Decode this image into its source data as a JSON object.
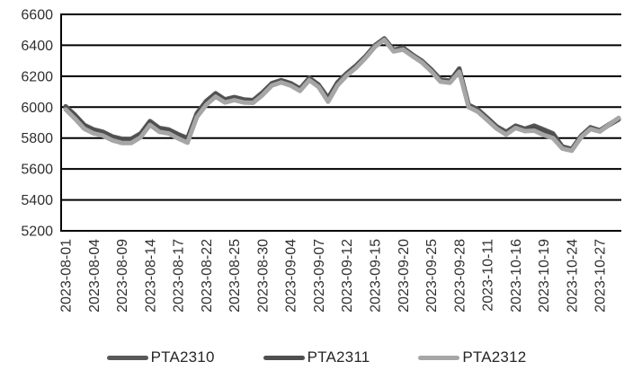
{
  "chart_data": {
    "type": "line",
    "title": "",
    "xlabel": "",
    "ylabel": "",
    "ylim": [
      5200,
      6600
    ],
    "y_ticks": [
      5200,
      5400,
      5600,
      5800,
      6000,
      6200,
      6400,
      6600
    ],
    "grid": "horizontal",
    "legend_position": "bottom",
    "gridline_color": "#000000",
    "axis_color": "#000000",
    "tick_text_color": "#303030",
    "x_dates": [
      "2023-08-01",
      "2023-08-02",
      "2023-08-03",
      "2023-08-04",
      "2023-08-07",
      "2023-08-08",
      "2023-08-09",
      "2023-08-10",
      "2023-08-11",
      "2023-08-14",
      "2023-08-15",
      "2023-08-16",
      "2023-08-17",
      "2023-08-18",
      "2023-08-21",
      "2023-08-22",
      "2023-08-23",
      "2023-08-24",
      "2023-08-25",
      "2023-08-28",
      "2023-08-29",
      "2023-08-30",
      "2023-08-31",
      "2023-09-01",
      "2023-09-04",
      "2023-09-05",
      "2023-09-06",
      "2023-09-07",
      "2023-09-08",
      "2023-09-11",
      "2023-09-12",
      "2023-09-13",
      "2023-09-14",
      "2023-09-15",
      "2023-09-18",
      "2023-09-19",
      "2023-09-20",
      "2023-09-21",
      "2023-09-22",
      "2023-09-25",
      "2023-09-26",
      "2023-09-27",
      "2023-09-28",
      "2023-10-09",
      "2023-10-10",
      "2023-10-11",
      "2023-10-12",
      "2023-10-13",
      "2023-10-16",
      "2023-10-17",
      "2023-10-18",
      "2023-10-19",
      "2023-10-20",
      "2023-10-23",
      "2023-10-24",
      "2023-10-25",
      "2023-10-26",
      "2023-10-27",
      "2023-10-30",
      "2023-10-31"
    ],
    "x_tick_labels": [
      "2023-08-01",
      "2023-08-04",
      "2023-08-09",
      "2023-08-14",
      "2023-08-17",
      "2023-08-22",
      "2023-08-25",
      "2023-08-30",
      "2023-09-04",
      "2023-09-07",
      "2023-09-12",
      "2023-09-15",
      "2023-09-20",
      "2023-09-25",
      "2023-09-28",
      "2023-10-11",
      "2023-10-16",
      "2023-10-19",
      "2023-10-24",
      "2023-10-27"
    ],
    "x_tick_every": 3,
    "series": [
      {
        "name": "PTA2310",
        "color": "#595959",
        "values": [
          6005,
          5950,
          5885,
          5855,
          5840,
          5810,
          5795,
          5795,
          5830,
          5910,
          5865,
          5855,
          5825,
          5800,
          5960,
          6040,
          6090,
          6050,
          6065,
          6050,
          6045,
          6095,
          6155,
          6175,
          6155,
          6120,
          6190,
          6145,
          6060,
          6160,
          6220,
          6270,
          6330,
          6400,
          6445,
          6370,
          6385,
          6340,
          6300,
          6245,
          6180,
          6170,
          6250,
          6015,
          5985,
          5930,
          5875,
          5840,
          5880,
          5860,
          5880,
          5855,
          5830,
          5745,
          5730,
          5815,
          5870,
          5850,
          5890,
          5925
        ]
      },
      {
        "name": "PTA2311",
        "color": "#4f4f4f",
        "values": [
          5995,
          5945,
          5878,
          5848,
          5832,
          5802,
          5790,
          5788,
          5822,
          5900,
          5858,
          5848,
          5818,
          5792,
          5952,
          6032,
          6082,
          6044,
          6058,
          6042,
          6038,
          6088,
          6148,
          6168,
          6148,
          6112,
          6182,
          6138,
          6052,
          6152,
          6212,
          6262,
          6322,
          6392,
          6438,
          6362,
          6378,
          6332,
          6292,
          6238,
          6172,
          6162,
          6242,
          6010,
          5978,
          5922,
          5868,
          5832,
          5872,
          5852,
          5870,
          5848,
          5822,
          5740,
          5725,
          5808,
          5862,
          5845,
          5885,
          5920
        ]
      },
      {
        "name": "PTA2312",
        "color": "#a6a6a6",
        "values": [
          5985,
          5925,
          5860,
          5830,
          5815,
          5785,
          5768,
          5768,
          5805,
          5885,
          5840,
          5830,
          5798,
          5770,
          5935,
          6015,
          6068,
          6030,
          6045,
          6030,
          6028,
          6078,
          6140,
          6160,
          6140,
          6105,
          6175,
          6130,
          6035,
          6140,
          6205,
          6255,
          6318,
          6390,
          6435,
          6360,
          6372,
          6330,
          6290,
          6232,
          6165,
          6158,
          6228,
          6000,
          5970,
          5915,
          5860,
          5822,
          5865,
          5845,
          5848,
          5820,
          5800,
          5732,
          5718,
          5805,
          5858,
          5842,
          5888,
          5930
        ]
      }
    ]
  }
}
